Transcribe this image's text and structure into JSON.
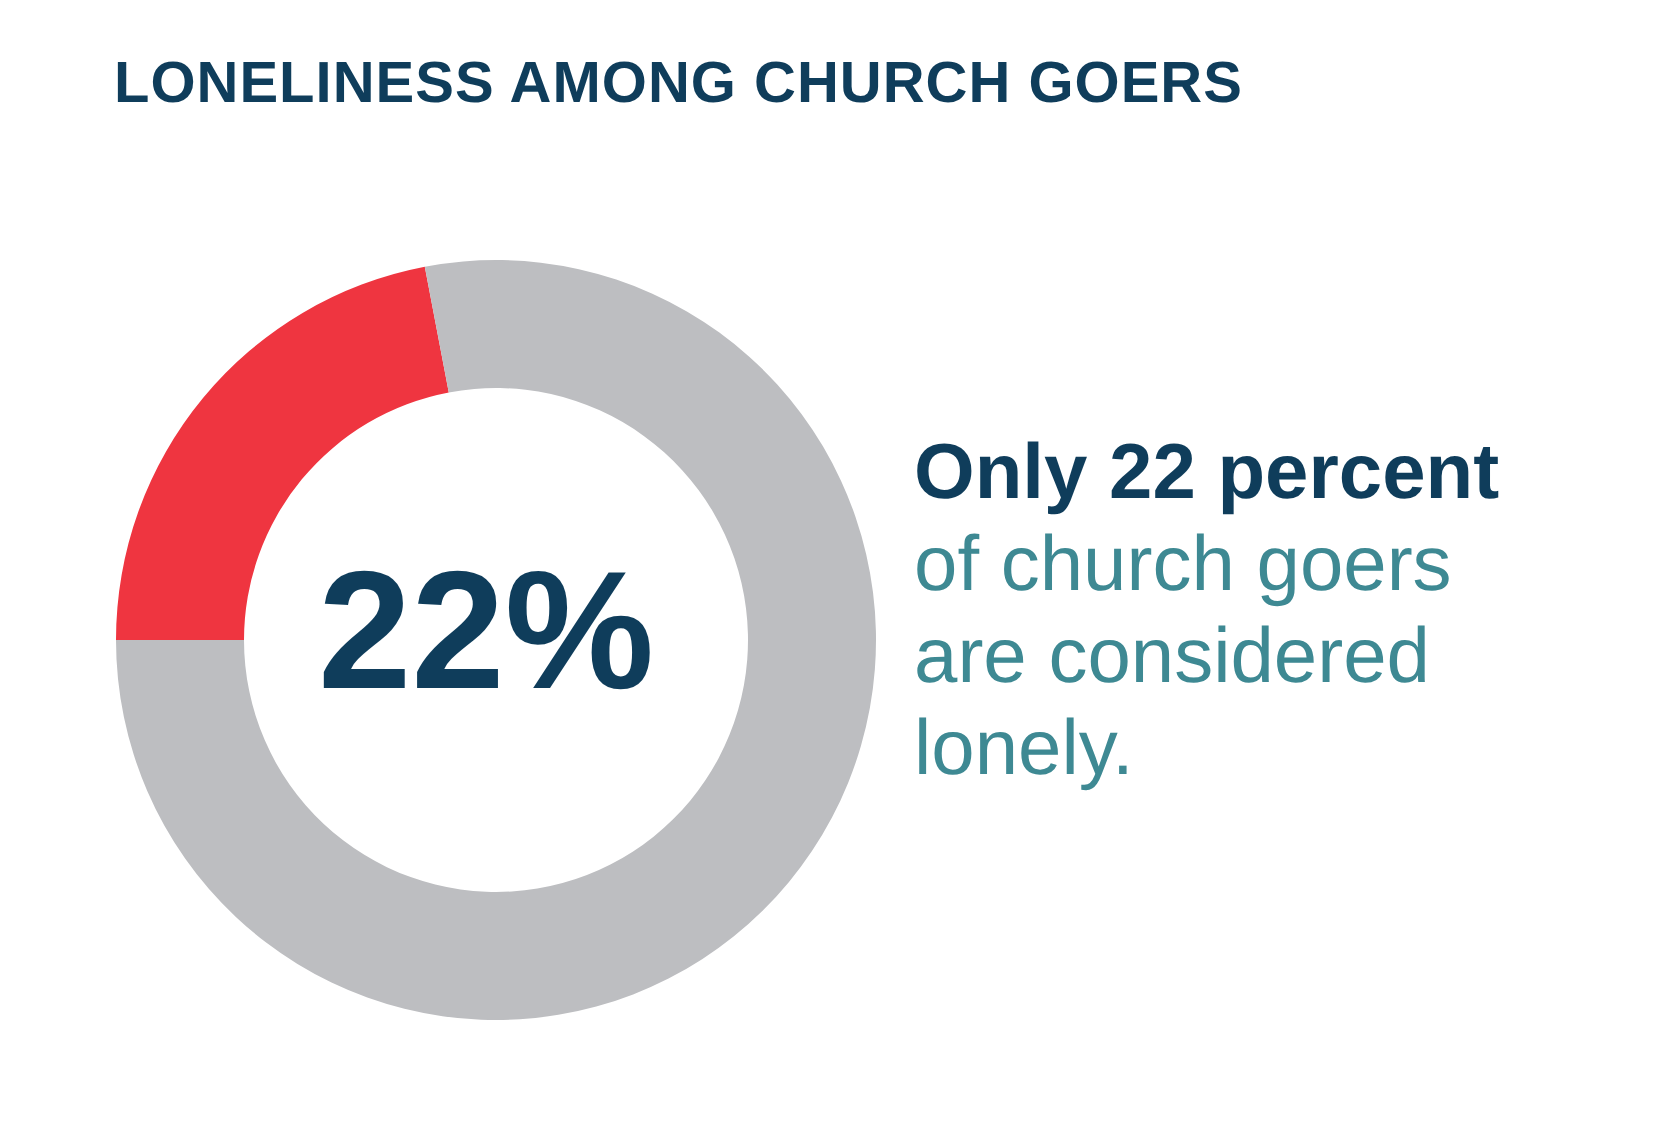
{
  "chart_data": {
    "type": "donut",
    "title": "LONELINESS AMONG CHURCH GOERS",
    "categories": [
      null,
      null
    ],
    "values": [
      22,
      78
    ],
    "colors": [
      "#ef3540",
      "#bdbec1"
    ],
    "value_labels": [
      "22%",
      null
    ],
    "annotations": [
      "Only 22 percent",
      "of church goers are considered lonely."
    ]
  }
}
